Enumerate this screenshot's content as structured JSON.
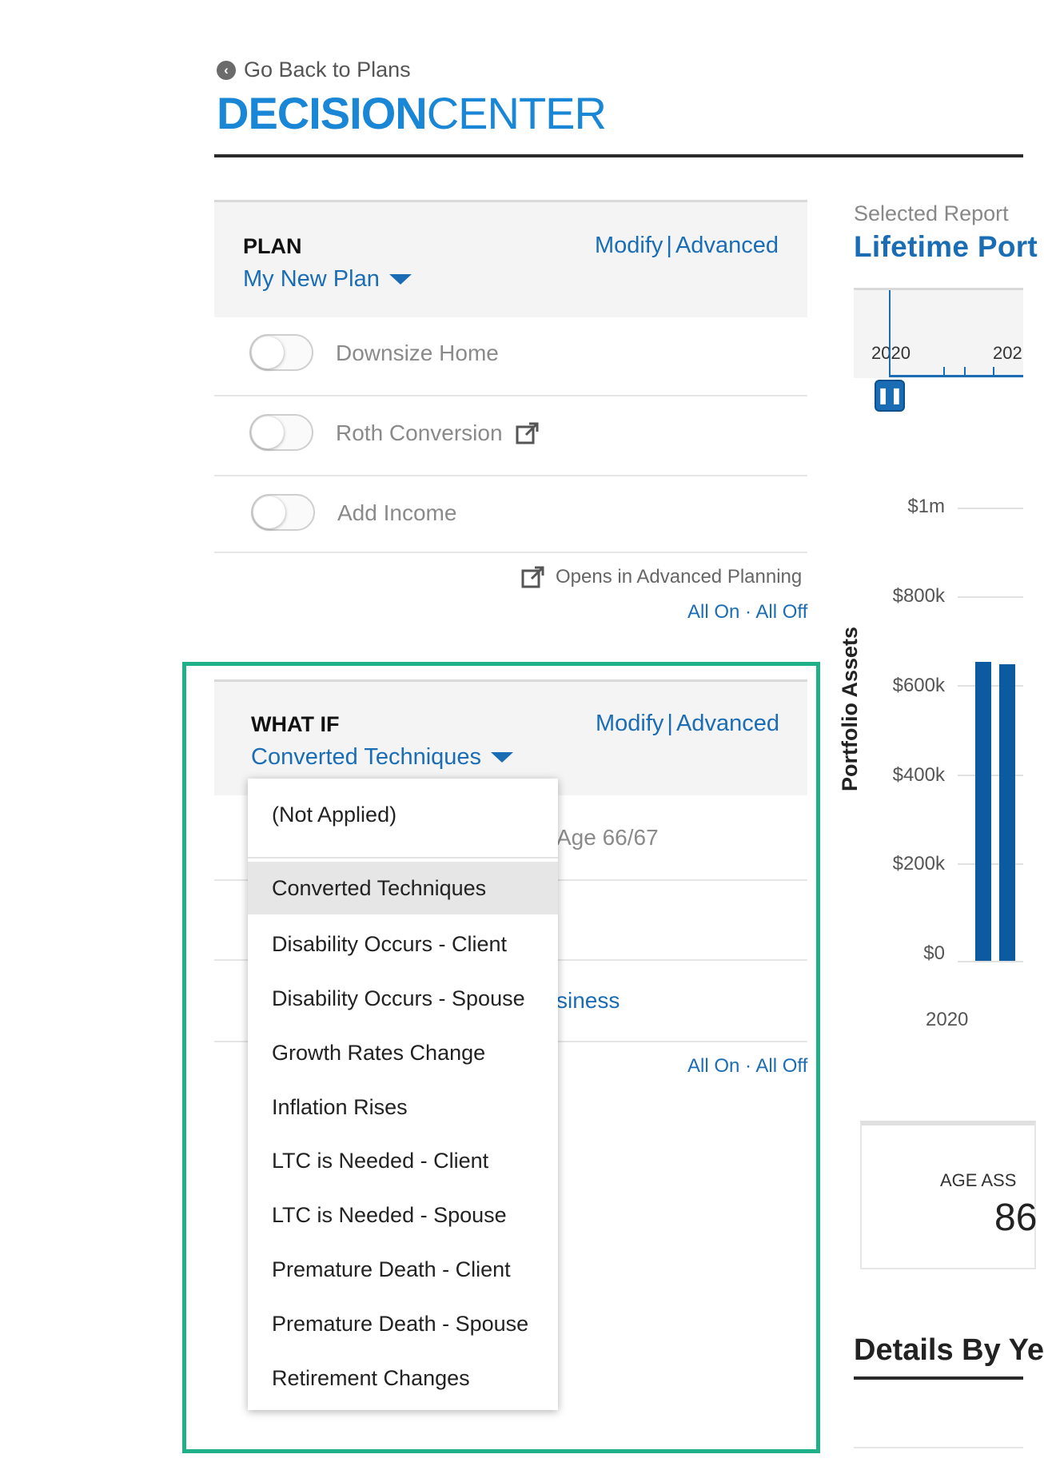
{
  "header": {
    "back_label": "Go Back to Plans",
    "brand_bold": "DECISION",
    "brand_light": "CENTER"
  },
  "plan_panel": {
    "title": "PLAN",
    "selected": "My New Plan",
    "modify": "Modify",
    "separator": "|",
    "advanced": "Advanced",
    "items": [
      {
        "label": "Downsize Home",
        "on": false
      },
      {
        "label": "Roth Conversion",
        "on": false,
        "external": true
      },
      {
        "label": "Add Income",
        "on": false
      }
    ],
    "note": "Opens in Advanced Planning",
    "all_on": "All On",
    "dot": "·",
    "all_off": "All Off"
  },
  "whatif_panel": {
    "title": "WHAT IF",
    "selected": "Converted Techniques",
    "modify": "Modify",
    "separator": "|",
    "advanced": "Advanced",
    "partial_row_1": "Age 66/67",
    "partial_row_2": "siness",
    "all_on": "All On",
    "dot": "·",
    "all_off": "All Off"
  },
  "dropdown": {
    "options": [
      "(Not Applied)",
      "Converted Techniques",
      "Disability Occurs - Client",
      "Disability Occurs - Spouse",
      "Growth Rates Change",
      "Inflation Rises",
      "LTC is Needed - Client",
      "LTC is Needed - Spouse",
      "Premature Death - Client",
      "Premature Death - Spouse",
      "Retirement Changes"
    ],
    "selected_index": 1
  },
  "report": {
    "selected_label": "Selected Report",
    "title": "Lifetime Port",
    "timeline_years": [
      "2020",
      "202"
    ],
    "pause_icon": "pause-icon"
  },
  "chart_data": {
    "type": "bar",
    "title": "",
    "ylabel": "Portfolio Assets",
    "xlabel": "",
    "y_ticks": [
      "$1m",
      "$800k",
      "$600k",
      "$400k",
      "$200k",
      "$0"
    ],
    "ylim": [
      0,
      1000000
    ],
    "x_tick": "2020",
    "values": [
      660000,
      655000
    ]
  },
  "card": {
    "label": "AGE ASS",
    "value": "86"
  },
  "details": {
    "title": "Details By Ye"
  },
  "colors": {
    "accent": "#1a6db5",
    "brand": "#1a86d6",
    "bar": "#0c5aa0",
    "highlight": "#1fb089"
  }
}
